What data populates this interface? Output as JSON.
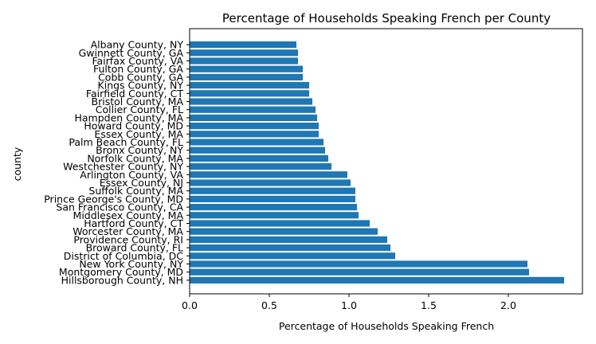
{
  "chart_data": {
    "type": "bar",
    "orientation": "horizontal",
    "title": "Percentage of Households Speaking French per County",
    "xlabel": "Percentage of Households Speaking French",
    "ylabel": "county",
    "xlim": [
      0,
      2.35
    ],
    "xticks": [
      "0.0",
      "0.5",
      "1.0",
      "1.5",
      "2.0"
    ],
    "xtick_values": [
      0,
      0.5,
      1.0,
      1.5,
      2.0
    ],
    "grid": false,
    "bar_color": "#1f77b4",
    "categories": [
      "Albany County, NY",
      "Gwinnett County, GA",
      "Fairfax County, VA",
      "Fulton County, GA",
      "Cobb County, GA",
      "Kings County, NY",
      "Fairfield County, CT",
      "Bristol County, MA",
      "Collier County, FL",
      "Hampden County, MA",
      "Howard County, MD",
      "Essex County, MA",
      "Palm Beach County, FL",
      "Bronx County, NY",
      "Norfolk County, MA",
      "Westchester County, NY",
      "Arlington County, VA",
      "Essex County, NJ",
      "Suffolk County, MA",
      "Prince George's County, MD",
      "San Francisco County, CA",
      "Middlesex County, MA",
      "Hartford County, CT",
      "Worcester County, MA",
      "Providence County, RI",
      "Broward County, FL",
      "District of Columbia, DC",
      "New York County, NY",
      "Montgomery County, MD",
      "Hillsborough County, NH"
    ],
    "values": [
      0.67,
      0.68,
      0.68,
      0.71,
      0.71,
      0.75,
      0.75,
      0.77,
      0.79,
      0.8,
      0.81,
      0.81,
      0.84,
      0.85,
      0.87,
      0.89,
      0.99,
      1.01,
      1.04,
      1.04,
      1.05,
      1.06,
      1.13,
      1.18,
      1.24,
      1.26,
      1.29,
      2.12,
      2.13,
      2.35
    ]
  }
}
